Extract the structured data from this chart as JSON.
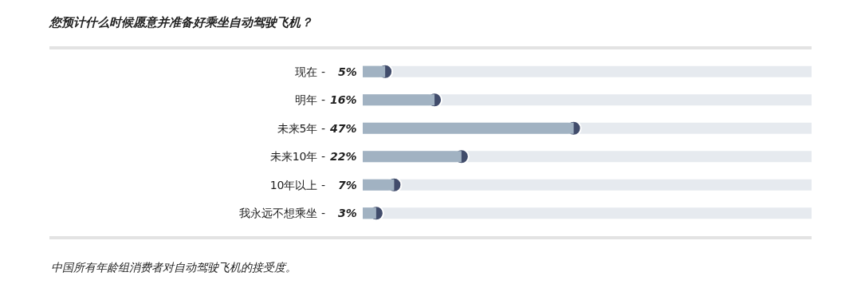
{
  "chart_data": {
    "type": "bar",
    "orientation": "horizontal",
    "title": "您预计什么时候愿意并准备好乘坐自动驾驶飞机？",
    "categories": [
      "现在 -",
      "明年 -",
      "未来5年 -",
      "未来10年 -",
      "10年以上 -",
      "我永远不想乘坐 -"
    ],
    "series": [
      {
        "color": "#a1b2c2",
        "marker": "circle",
        "values": [
          5,
          16,
          47,
          22,
          7,
          3
        ],
        "value_labels": [
          "5%",
          "16%",
          "47%",
          "22%",
          "7%",
          "3%"
        ]
      }
    ],
    "xlim": [
      0,
      100
    ],
    "tick_labels": "y",
    "annotations": [
      "中国所有年龄组消费者对自动驾驶飞机的接受度。"
    ]
  }
}
